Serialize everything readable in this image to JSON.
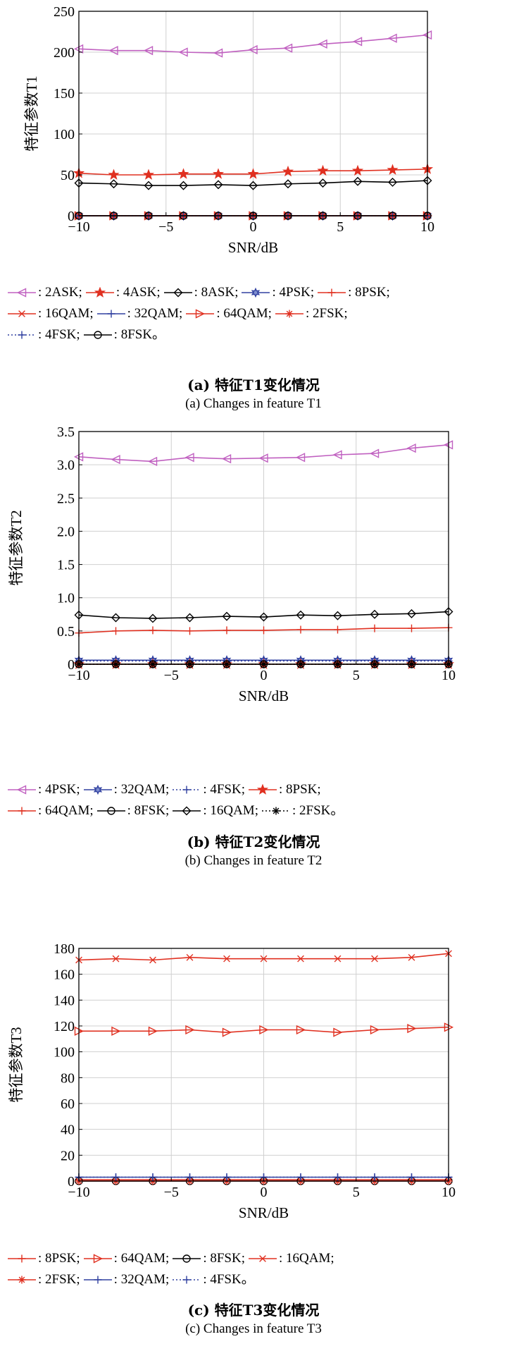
{
  "chart_data": [
    {
      "type": "line",
      "xlabel": "SNR/dB",
      "ylabel": "特征参数T1",
      "xlim": [
        -10,
        10
      ],
      "ylim": [
        0,
        250
      ],
      "xticks": [
        "−10",
        "−5",
        "0",
        "5",
        "10"
      ],
      "yticks": [
        "0",
        "50",
        "100",
        "150",
        "200",
        "250"
      ],
      "grid": true,
      "x": [
        -10,
        -8,
        -6,
        -4,
        -2,
        0,
        2,
        4,
        6,
        8,
        10
      ],
      "series": [
        {
          "name": ": 2ASK;",
          "color": "#c060c0",
          "marker": "tri-left",
          "values": [
            204,
            202,
            202,
            200,
            199,
            203,
            205,
            210,
            213,
            217,
            221
          ]
        },
        {
          "name": ": 4ASK;",
          "color": "#e03020",
          "marker": "star",
          "values": [
            52,
            50,
            50,
            51,
            51,
            51,
            54,
            55,
            55,
            56,
            57
          ]
        },
        {
          "name": ": 8ASK;",
          "color": "#000000",
          "marker": "diamond",
          "values": [
            40,
            39,
            37,
            37,
            38,
            37,
            39,
            40,
            42,
            41,
            43
          ]
        },
        {
          "name": ": 4PSK;",
          "color": "#3040a0",
          "marker": "hexstar",
          "values": [
            0,
            0,
            0,
            0,
            0,
            0,
            0,
            0,
            0,
            0,
            0
          ]
        },
        {
          "name": ": 8PSK;",
          "color": "#e03020",
          "marker": "plus",
          "values": [
            0,
            0,
            0,
            0,
            0,
            0,
            0,
            0,
            0,
            0,
            0
          ]
        },
        {
          "name": ": 16QAM;",
          "color": "#e03020",
          "marker": "x",
          "values": [
            0,
            0,
            0,
            0,
            0,
            0,
            0,
            0,
            0,
            0,
            0
          ]
        },
        {
          "name": ": 32QAM;",
          "color": "#3040a0",
          "marker": "plus",
          "values": [
            0,
            0,
            0,
            0,
            0,
            0,
            0,
            0,
            0,
            0,
            0
          ]
        },
        {
          "name": ": 64QAM;",
          "color": "#e03020",
          "marker": "tri-right",
          "values": [
            0,
            0,
            0,
            0,
            0,
            0,
            0,
            0,
            0,
            0,
            0
          ]
        },
        {
          "name": ": 2FSK;",
          "color": "#e03020",
          "marker": "asterisk",
          "values": [
            0,
            0,
            0,
            0,
            0,
            0,
            0,
            0,
            0,
            0,
            0
          ]
        },
        {
          "name": ": 4FSK;",
          "color": "#3040a0",
          "marker": "plus",
          "dotted": true,
          "values": [
            0,
            0,
            0,
            0,
            0,
            0,
            0,
            0,
            0,
            0,
            0
          ]
        },
        {
          "name": ": 8FSK。",
          "color": "#000000",
          "marker": "circle",
          "values": [
            0,
            0,
            0,
            0,
            0,
            0,
            0,
            0,
            0,
            0,
            0
          ]
        }
      ],
      "legend_rows": [
        [
          0,
          1,
          2,
          3,
          4
        ],
        [
          5,
          6,
          7,
          8
        ],
        [
          9,
          10
        ]
      ],
      "caption_zh": "(a) 特征T1变化情况",
      "caption_en": "(a) Changes in feature T1"
    },
    {
      "type": "line",
      "xlabel": "SNR/dB",
      "ylabel": "特征参数T2",
      "xlim": [
        -10,
        10
      ],
      "ylim": [
        0,
        3.5
      ],
      "xticks": [
        "−10",
        "−5",
        "0",
        "5",
        "10"
      ],
      "yticks": [
        "0",
        "0.5",
        "1.0",
        "1.5",
        "2.0",
        "2.5",
        "3.0",
        "3.5"
      ],
      "grid": true,
      "x": [
        -10,
        -8,
        -6,
        -4,
        -2,
        0,
        2,
        4,
        6,
        8,
        10
      ],
      "series": [
        {
          "name": ": 4PSK;",
          "color": "#c060c0",
          "marker": "tri-left",
          "values": [
            3.12,
            3.08,
            3.05,
            3.11,
            3.09,
            3.1,
            3.11,
            3.15,
            3.17,
            3.25,
            3.3
          ]
        },
        {
          "name": ": 32QAM;",
          "color": "#3040a0",
          "marker": "hexstar",
          "values": [
            0.06,
            0.06,
            0.06,
            0.06,
            0.06,
            0.06,
            0.06,
            0.06,
            0.06,
            0.06,
            0.06
          ]
        },
        {
          "name": ": 4FSK;",
          "color": "#3040a0",
          "marker": "plus",
          "dotted": true,
          "values": [
            0.05,
            0.05,
            0.05,
            0.05,
            0.05,
            0.05,
            0.05,
            0.05,
            0.05,
            0.05,
            0.05
          ]
        },
        {
          "name": ": 8PSK;",
          "color": "#e03020",
          "marker": "star",
          "values": [
            0,
            0,
            0,
            0,
            0,
            0,
            0,
            0,
            0,
            0,
            0
          ]
        },
        {
          "name": ": 64QAM;",
          "color": "#e03020",
          "marker": "plus",
          "values": [
            0.47,
            0.5,
            0.51,
            0.5,
            0.51,
            0.51,
            0.52,
            0.52,
            0.54,
            0.54,
            0.55
          ]
        },
        {
          "name": ": 8FSK;",
          "color": "#000000",
          "marker": "circle",
          "values": [
            0,
            0,
            0,
            0,
            0,
            0,
            0,
            0,
            0,
            0,
            0
          ]
        },
        {
          "name": ": 16QAM;",
          "color": "#000000",
          "marker": "diamond",
          "values": [
            0.74,
            0.7,
            0.69,
            0.7,
            0.72,
            0.71,
            0.74,
            0.73,
            0.75,
            0.76,
            0.79
          ]
        },
        {
          "name": ": 2FSK。",
          "color": "#000000",
          "marker": "asterisk",
          "dotted": true,
          "values": [
            0,
            0,
            0,
            0,
            0,
            0,
            0,
            0,
            0,
            0,
            0
          ]
        }
      ],
      "legend_rows": [
        [
          0,
          1,
          2,
          3
        ],
        [
          4,
          5,
          6,
          7
        ]
      ],
      "caption_zh": "(b) 特征T2变化情况",
      "caption_en": "(b) Changes in feature T2"
    },
    {
      "type": "line",
      "xlabel": "SNR/dB",
      "ylabel": "特征参数T3",
      "xlim": [
        -10,
        10
      ],
      "ylim": [
        0,
        180
      ],
      "xticks": [
        "−10",
        "−5",
        "0",
        "5",
        "10"
      ],
      "yticks": [
        "0",
        "20",
        "40",
        "60",
        "80",
        "100",
        "120",
        "140",
        "160",
        "180"
      ],
      "grid": true,
      "x": [
        -10,
        -8,
        -6,
        -4,
        -2,
        0,
        2,
        4,
        6,
        8,
        10
      ],
      "series": [
        {
          "name": ": 8PSK;",
          "color": "#e03020",
          "marker": "plus",
          "values": [
            1,
            1,
            1,
            1,
            1,
            1,
            1,
            1,
            1,
            1,
            1
          ]
        },
        {
          "name": ": 64QAM;",
          "color": "#e03020",
          "marker": "tri-right",
          "values": [
            116,
            116,
            116,
            117,
            115,
            117,
            117,
            115,
            117,
            118,
            119
          ]
        },
        {
          "name": ": 8FSK;",
          "color": "#000000",
          "marker": "circle",
          "values": [
            0,
            0,
            0,
            0,
            0,
            0,
            0,
            0,
            0,
            0,
            0
          ]
        },
        {
          "name": ": 16QAM;",
          "color": "#e03020",
          "marker": "x",
          "values": [
            171,
            172,
            171,
            173,
            172,
            172,
            172,
            172,
            172,
            173,
            176
          ]
        },
        {
          "name": ": 2FSK;",
          "color": "#e03020",
          "marker": "asterisk",
          "values": [
            0,
            0,
            0,
            0,
            0,
            0,
            0,
            0,
            0,
            0,
            0
          ]
        },
        {
          "name": ": 32QAM;",
          "color": "#3040a0",
          "marker": "plus",
          "values": [
            3,
            3,
            3,
            3,
            3,
            3,
            3,
            3,
            3,
            3,
            3
          ]
        },
        {
          "name": ": 4FSK。",
          "color": "#3040a0",
          "marker": "plus",
          "dotted": true,
          "values": [
            3,
            3,
            3,
            3,
            3,
            3,
            3,
            3,
            3,
            3,
            3
          ]
        }
      ],
      "legend_rows": [
        [
          0,
          1,
          2,
          3
        ],
        [
          4,
          5,
          6
        ]
      ],
      "caption_zh": "(c) 特征T3变化情况",
      "caption_en": "(c) Changes in feature T3"
    }
  ]
}
